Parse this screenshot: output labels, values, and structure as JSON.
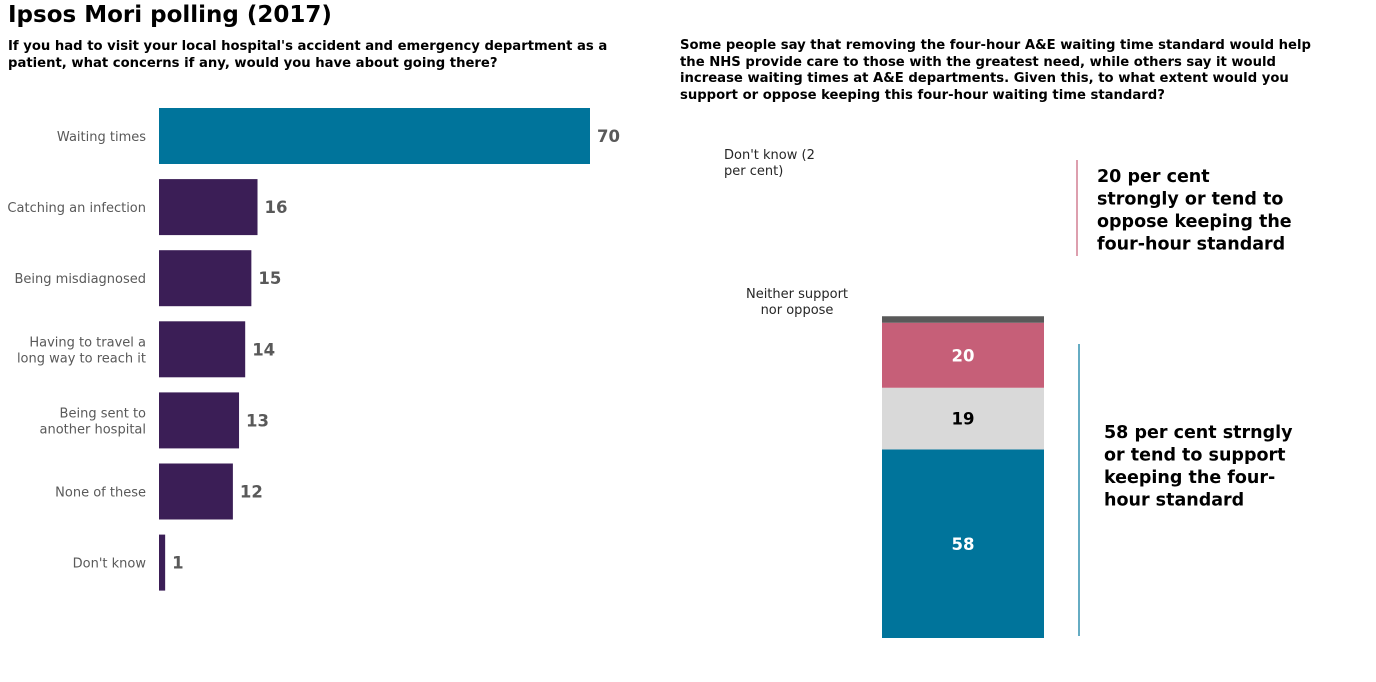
{
  "title": "Ipsos Mori polling (2017)",
  "chart_data": [
    {
      "type": "bar",
      "orientation": "horizontal",
      "title": "If you had to visit your local hospital's accident and emergency department as a patient, what concerns if any, would you have about going there?",
      "categories": [
        [
          "Waiting times"
        ],
        [
          "Catching an infection"
        ],
        [
          "Being misdiagnosed"
        ],
        [
          "Having to travel a",
          "long way to reach it"
        ],
        [
          "Being sent to",
          "another hospital"
        ],
        [
          "None of these"
        ],
        [
          "Don't know"
        ]
      ],
      "values": [
        70,
        16,
        15,
        14,
        13,
        12,
        1
      ],
      "colors": [
        "#00749b",
        "#3b1e56",
        "#3b1e56",
        "#3b1e56",
        "#3b1e56",
        "#3b1e56",
        "#3b1e56"
      ],
      "xlim": [
        0,
        70
      ]
    },
    {
      "type": "stacked-bar",
      "title": "Some people say that removing the four-hour A&E waiting time standard would help the NHS provide care to those with the greatest need, while others say it would increase waiting times at A&E departments. Given this, to what extent would you support or oppose keeping this four-hour waiting time standard?",
      "segments": [
        {
          "name": "Support",
          "value": 58,
          "label": "58",
          "color": "#00749b",
          "text_color": "#ffffff"
        },
        {
          "name": "Neither support nor oppose",
          "value": 19,
          "label": "19",
          "color": "#d9d9d9",
          "text_color": "#000000"
        },
        {
          "name": "Oppose",
          "value": 20,
          "label": "20",
          "color": "#c65f78",
          "text_color": "#ffffff"
        },
        {
          "name": "Don't know",
          "value": 2,
          "label": "",
          "color": "#595959",
          "text_color": "#ffffff"
        }
      ],
      "side_labels": {
        "dont_know": [
          "Don't know (2",
          "per cent)"
        ],
        "neither": [
          "Neither support",
          "nor oppose"
        ]
      },
      "annotations": {
        "oppose": [
          "20 per cent",
          "strongly or tend to",
          "oppose keeping the",
          "four-hour standard"
        ],
        "support": [
          "58 per cent strngly",
          "or tend to support",
          "keeping the four-",
          "hour standard"
        ]
      }
    }
  ]
}
